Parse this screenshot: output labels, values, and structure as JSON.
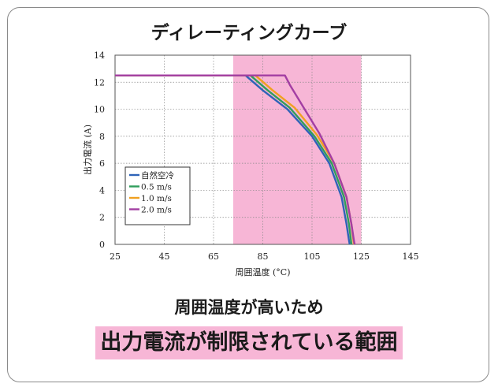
{
  "chart_data": {
    "type": "line",
    "title": "ディレーティングカーブ",
    "xlabel": "周囲温度 (°C)",
    "ylabel": "出力電流 (A)",
    "xlim": [
      25,
      145
    ],
    "ylim": [
      0,
      14
    ],
    "xticks": [
      "25",
      "45",
      "65",
      "85",
      "105",
      "125",
      "145"
    ],
    "yticks": [
      "0",
      "2",
      "4",
      "6",
      "8",
      "10",
      "12",
      "14"
    ],
    "grid": true,
    "legend_position": "lower-left",
    "highlight_region": {
      "x": [
        73,
        125
      ],
      "color": "#f7b6d6"
    },
    "series": [
      {
        "name": "自然空冷",
        "color": "#2e63b8",
        "x": [
          25,
          78,
          85,
          95,
          105,
          112,
          117,
          119,
          120,
          120.3
        ],
        "y": [
          12.5,
          12.5,
          11.4,
          10.0,
          8.0,
          6.0,
          3.5,
          1.5,
          0.3,
          0
        ]
      },
      {
        "name": "0.5 m/s",
        "color": "#2f9e5c",
        "x": [
          25,
          80,
          87,
          96,
          106,
          113,
          118,
          120,
          120.8,
          121
        ],
        "y": [
          12.5,
          12.5,
          11.4,
          10.1,
          8.0,
          6.0,
          3.5,
          1.5,
          0.3,
          0
        ]
      },
      {
        "name": "1.0 m/s",
        "color": "#f0a020",
        "x": [
          25,
          82,
          89,
          98,
          107,
          114,
          119,
          121,
          121.8,
          122
        ],
        "y": [
          12.5,
          12.5,
          11.4,
          10.1,
          8.1,
          6.0,
          3.5,
          1.5,
          0.3,
          0
        ]
      },
      {
        "name": "2.0 m/s",
        "color": "#a33ea3",
        "x": [
          25,
          94,
          96,
          102,
          108,
          114,
          119,
          121,
          122,
          122.3
        ],
        "y": [
          12.5,
          12.5,
          11.8,
          10.0,
          8.2,
          6.0,
          3.5,
          1.5,
          0.3,
          0
        ]
      }
    ]
  },
  "captions": {
    "line1": "周囲温度が高いため",
    "line2": "出力電流が制限されている範囲"
  }
}
